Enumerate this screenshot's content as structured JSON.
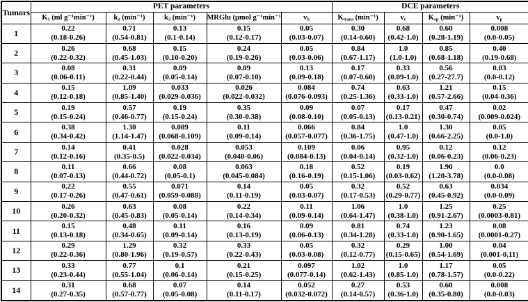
{
  "page": {
    "background": "#ffffff",
    "text_color": "#000000",
    "border_color": "#000000"
  },
  "table": {
    "corner_header": "Tumors",
    "groups": [
      {
        "label": "PET parameters",
        "span": 5
      },
      {
        "label": "DCE parameters",
        "span": 4
      }
    ],
    "columns": [
      {
        "id": "k1",
        "base": "K",
        "sub": "1",
        "unit": "(ml g⁻¹min⁻¹)",
        "group": "PET parameters"
      },
      {
        "id": "k2",
        "base": "k",
        "sub": "2",
        "unit": "(min⁻¹)",
        "group": "PET parameters"
      },
      {
        "id": "k3",
        "base": "k",
        "sub": "3",
        "unit": "(min⁻¹)",
        "group": "PET parameters"
      },
      {
        "id": "mrglu",
        "base": "MRGlu",
        "sub": "",
        "unit": "(μmol g⁻¹min⁻¹)",
        "group": "PET parameters"
      },
      {
        "id": "vb",
        "base": "v",
        "sub": "b",
        "unit": "",
        "group": "PET parameters"
      },
      {
        "id": "ktrans",
        "base": "K",
        "sub": "trans",
        "unit": "(min⁻¹)",
        "group": "DCE parameters"
      },
      {
        "id": "ve",
        "base": "v",
        "sub": "e",
        "unit": "",
        "group": "DCE parameters"
      },
      {
        "id": "kep",
        "base": "K",
        "sub": "ep",
        "unit": "(min⁻¹)",
        "group": "DCE parameters"
      },
      {
        "id": "vp",
        "base": "v",
        "sub": "p",
        "unit": "",
        "group": "DCE parameters"
      }
    ],
    "rows": [
      {
        "tumor": "1",
        "cells": [
          {
            "value": "0.22",
            "range": "(0.18-0.26)"
          },
          {
            "value": "0.71",
            "range": "(0.54-0.81)"
          },
          {
            "value": "0.13",
            "range": "(0.1-0.14)"
          },
          {
            "value": "0.15",
            "range": "(0.12-0.17)"
          },
          {
            "value": "0.05",
            "range": "(0.03-0.07)"
          },
          {
            "value": "0.30",
            "range": "(0.14-0.60)"
          },
          {
            "value": "0.68",
            "range": "(0.42-1.0)"
          },
          {
            "value": "0.60",
            "range": "(0.28-1.19)"
          },
          {
            "value": "0.008",
            "range": "(0.0-0.05)"
          }
        ]
      },
      {
        "tumor": "2",
        "cells": [
          {
            "value": "0.26",
            "range": "(0.22-0.32)"
          },
          {
            "value": "0.68",
            "range": "(0.45-1.03)"
          },
          {
            "value": "0.15",
            "range": "(0.10-0.20)"
          },
          {
            "value": "0.24",
            "range": "(0.19-0.26)"
          },
          {
            "value": "0.05",
            "range": "(0.03-0.06)"
          },
          {
            "value": "0.84",
            "range": "(0.67-1.17)"
          },
          {
            "value": "1.0",
            "range": "(1.0-1.0)"
          },
          {
            "value": "0.85",
            "range": "(0.68-1.18)"
          },
          {
            "value": "0.40",
            "range": "(0.19-0.68)"
          }
        ]
      },
      {
        "tumor": "3",
        "cells": [
          {
            "value": "0.08",
            "range": "(0.06-0.11)"
          },
          {
            "value": "0.31",
            "range": "(0.22-0.44)"
          },
          {
            "value": "0.09",
            "range": "(0.05-0.14)"
          },
          {
            "value": "0.09",
            "range": "(0.07-0.10)"
          },
          {
            "value": "0.13",
            "range": "(0.09-0.18)"
          },
          {
            "value": "0.17",
            "range": "(0.07-0.60)"
          },
          {
            "value": "0.33",
            "range": "(0.09-1.0)"
          },
          {
            "value": "0.56",
            "range": "(0.27-27.7)"
          },
          {
            "value": "0.03",
            "range": "(0.0-0.12)"
          }
        ]
      },
      {
        "tumor": "4",
        "cells": [
          {
            "value": "0.15",
            "range": "(0.12-0.18)"
          },
          {
            "value": "1.09",
            "range": "(0.85-1.40)"
          },
          {
            "value": "0.033",
            "range": "(0.029-0.036)"
          },
          {
            "value": "0.026",
            "range": "(0.022-0.032)"
          },
          {
            "value": "0.084",
            "range": "(0.076-0.093)"
          },
          {
            "value": "0.74",
            "range": "(0.25-1.36)"
          },
          {
            "value": "0.63",
            "range": "(0.33-1.0)"
          },
          {
            "value": "1.21",
            "range": "(0.57-2.66)"
          },
          {
            "value": "0.15",
            "range": "(0.04-0.36)"
          }
        ]
      },
      {
        "tumor": "5",
        "cells": [
          {
            "value": "0.19",
            "range": "(0.15-0.24)"
          },
          {
            "value": "0.57",
            "range": "(0.46-0.77)"
          },
          {
            "value": "0.19",
            "range": "(0.15-0.24)"
          },
          {
            "value": "0.35",
            "range": "(0.30-0.38)"
          },
          {
            "value": "0.09",
            "range": "(0.08-0.10)"
          },
          {
            "value": "0.07",
            "range": "(0.05-0.13)"
          },
          {
            "value": "0.17",
            "range": "(0.13-0.21)"
          },
          {
            "value": "0.47",
            "range": "(0.30-0.74)"
          },
          {
            "value": "0.02",
            "range": "(0.009-0.024)"
          }
        ]
      },
      {
        "tumor": "6",
        "cells": [
          {
            "value": "0.38",
            "range": "(0.34-0.42)"
          },
          {
            "value": "1.30",
            "range": "(1.14-1.47)"
          },
          {
            "value": "0.089",
            "range": "(0.068-0.109)"
          },
          {
            "value": "0.11",
            "range": "(0.09-0.14)"
          },
          {
            "value": "0.066",
            "range": "(0.057-0.077)"
          },
          {
            "value": "0.84",
            "range": "(0.36-1.75)"
          },
          {
            "value": "1.0",
            "range": "(0.47-1.0)"
          },
          {
            "value": "1.30",
            "range": "(0.66-2.25)"
          },
          {
            "value": "0.05",
            "range": "(0.0-1.0)"
          }
        ]
      },
      {
        "tumor": "7",
        "cells": [
          {
            "value": "0.14",
            "range": "(0.12-0.16)"
          },
          {
            "value": "0.41",
            "range": "(0.35-0.5)"
          },
          {
            "value": "0.028",
            "range": "(0.022-0.034)"
          },
          {
            "value": "0.053",
            "range": "(0.048-0.06)"
          },
          {
            "value": "0.109",
            "range": "(0.084-0.13)"
          },
          {
            "value": "0.06",
            "range": "(0.04-0.14)"
          },
          {
            "value": "0.95",
            "range": "(0.32-1.0)"
          },
          {
            "value": "0.12",
            "range": "(0.06-0.23)"
          },
          {
            "value": "0.12",
            "range": "(0.06-0.23)"
          }
        ]
      },
      {
        "tumor": "8",
        "cells": [
          {
            "value": "0.11",
            "range": "(0.07-0.13)"
          },
          {
            "value": "0.66",
            "range": "(0.44-0.72)"
          },
          {
            "value": "0.08",
            "range": "(0.05-0.1)"
          },
          {
            "value": "0.063",
            "range": "(0.045-0.084)"
          },
          {
            "value": "0.18",
            "range": "(0.16-0.19)"
          },
          {
            "value": "0.52",
            "range": "(0.15-1.06)"
          },
          {
            "value": "0.19",
            "range": "(0.03-0.62)"
          },
          {
            "value": "1.90",
            "range": "(1.20-3.78)"
          },
          {
            "value": "0.0",
            "range": "(0.0-0.08)"
          }
        ]
      },
      {
        "tumor": "9",
        "cells": [
          {
            "value": "0.22",
            "range": "(0.17-0.26)"
          },
          {
            "value": "0.55",
            "range": "(0.47-0.61)"
          },
          {
            "value": "0.071",
            "range": "(0.059-0.088)"
          },
          {
            "value": "0.14",
            "range": "(0.11-0.19)"
          },
          {
            "value": "0.05",
            "range": "(0.03-0.07)"
          },
          {
            "value": "0.32",
            "range": "(0.17-0.53)"
          },
          {
            "value": "0.52",
            "range": "(0.29-0.77)"
          },
          {
            "value": "0.63",
            "range": "(0.45-0.92)"
          },
          {
            "value": "0.034",
            "range": "(0.0-0.09)"
          }
        ]
      },
      {
        "tumor": "10",
        "cells": [
          {
            "value": "0.26",
            "range": "(0.20-0.32)"
          },
          {
            "value": "0.63",
            "range": "(0.45-0.83)"
          },
          {
            "value": "0.08",
            "range": "(0.05-0.14)"
          },
          {
            "value": "0.22",
            "range": "(0.14-0.34)"
          },
          {
            "value": "0.11",
            "range": "(0.09-0.14)"
          },
          {
            "value": "1.06",
            "range": "(0.64-1.47)"
          },
          {
            "value": "1.0",
            "range": "(0.38-1.0)"
          },
          {
            "value": "1.25",
            "range": "(0.91-2.67)"
          },
          {
            "value": "0.25",
            "range": "(0.0003-0.81)"
          }
        ]
      },
      {
        "tumor": "11",
        "cells": [
          {
            "value": "0.15",
            "range": "(0.13-0.18)"
          },
          {
            "value": "0.48",
            "range": "(0.34-0.65)"
          },
          {
            "value": "0.11",
            "range": "(0.09-0.14)"
          },
          {
            "value": "0.16",
            "range": "(0.13-0.19)"
          },
          {
            "value": "0.09",
            "range": "(0.06-0.13)"
          },
          {
            "value": "0.81",
            "range": "(0.34-1.28)"
          },
          {
            "value": "0.74",
            "range": "(0.33-1.0)"
          },
          {
            "value": "1.23",
            "range": "(0.90-1.65)"
          },
          {
            "value": "0.08",
            "range": "(0.0001-0.27)"
          }
        ]
      },
      {
        "tumor": "12",
        "cells": [
          {
            "value": "0.29",
            "range": "(0.22-0.36)"
          },
          {
            "value": "1.29",
            "range": "(0.80-1.96)"
          },
          {
            "value": "0.32",
            "range": "(0.19-0.57)"
          },
          {
            "value": "0.33",
            "range": "(0.22-0.43)"
          },
          {
            "value": "0.05",
            "range": "(0.03-0.08)"
          },
          {
            "value": "0.32",
            "range": "(0.12-0.77)"
          },
          {
            "value": "0.29",
            "range": "(0.15-0.65)"
          },
          {
            "value": "1.00",
            "range": "(0.54-1.69)"
          },
          {
            "value": "0.04",
            "range": "(0.001-0.11)"
          }
        ]
      },
      {
        "tumor": "13",
        "cells": [
          {
            "value": "0.33",
            "range": "(0.23-0.44)"
          },
          {
            "value": "0.77",
            "range": "(0.55-1.04)"
          },
          {
            "value": "0.1",
            "range": "(0.06-0.14)"
          },
          {
            "value": "0.21",
            "range": "(0.15-0.25)"
          },
          {
            "value": "0.097",
            "range": "(0.077-0.14)"
          },
          {
            "value": "1.02",
            "range": "(0.62-1.43)"
          },
          {
            "value": "1.0",
            "range": "(0.85-1.0)"
          },
          {
            "value": "1.17",
            "range": "(0.78-1.57)"
          },
          {
            "value": "0.05",
            "range": "(0.0-0.22)"
          }
        ]
      },
      {
        "tumor": "14",
        "cells": [
          {
            "value": "0.31",
            "range": "(0.27-0.35)"
          },
          {
            "value": "0.68",
            "range": "(0.57-0.77)"
          },
          {
            "value": "0.07",
            "range": "(0.05-0.08)"
          },
          {
            "value": "0.14",
            "range": "(0.11-0.17)"
          },
          {
            "value": "0.052",
            "range": "(0.032-0.072)"
          },
          {
            "value": "0.27",
            "range": "(0.14-0.57)"
          },
          {
            "value": "0.53",
            "range": "(0.36-1.0)"
          },
          {
            "value": "0.60",
            "range": "(0.35-0.80)"
          },
          {
            "value": "0.008",
            "range": "(0.0-0.03)"
          }
        ]
      }
    ]
  }
}
